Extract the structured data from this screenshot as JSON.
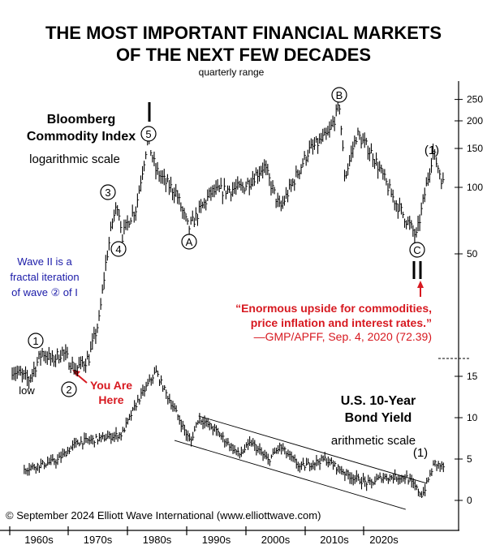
{
  "chart_data": {
    "type": "bar",
    "bar_style": "quarterly range (high-low) bars",
    "title": [
      "THE MOST IMPORTANT FINANCIAL MARKETS",
      "OF THE NEXT FEW DECADES"
    ],
    "subtitle": "quarterly range",
    "x_ticks": [
      "1960s",
      "1970s",
      "1980s",
      "1990s",
      "2000s",
      "2010s",
      "2020s"
    ],
    "panels": [
      {
        "name": [
          "Bloomberg",
          "Commodity Index"
        ],
        "scale_label": "logarithmic scale",
        "y_scale": "log",
        "y_ticks": [
          50,
          100,
          150,
          200,
          250
        ],
        "anchors": [
          [
            1960,
            15
          ],
          [
            1961.5,
            14
          ],
          [
            1962.5,
            13.5
          ],
          [
            1964.5,
            18
          ],
          [
            1966,
            16.5
          ],
          [
            1967.5,
            18
          ],
          [
            1969.5,
            15
          ],
          [
            1971.5,
            17
          ],
          [
            1973,
            25
          ],
          [
            1974,
            45
          ],
          [
            1975,
            70
          ],
          [
            1975.8,
            85
          ],
          [
            1976.5,
            60
          ],
          [
            1977.5,
            72
          ],
          [
            1978.5,
            80
          ],
          [
            1979.5,
            120
          ],
          [
            1980.3,
            165
          ],
          [
            1981.5,
            120
          ],
          [
            1983,
            105
          ],
          [
            1984.5,
            95
          ],
          [
            1986.4,
            65
          ],
          [
            1989.8,
            95
          ],
          [
            1994.6,
            100
          ],
          [
            1997.7,
            125
          ],
          [
            2000.1,
            80
          ],
          [
            2004.3,
            145
          ],
          [
            2007.4,
            175
          ],
          [
            2009,
            235
          ],
          [
            2009.8,
            110
          ],
          [
            2011.6,
            175
          ],
          [
            2014,
            140
          ],
          [
            2017,
            90
          ],
          [
            2020.5,
            60
          ],
          [
            2023,
            145
          ],
          [
            2024.7,
            100
          ]
        ]
      },
      {
        "name": [
          "U.S. 10-Year",
          "Bond Yield"
        ],
        "scale_label": "arithmetic scale",
        "y_scale": "linear",
        "y_ticks": [
          0,
          5,
          10,
          15
        ],
        "anchors": [
          [
            1961.8,
            3.8
          ],
          [
            1966.7,
            4.8
          ],
          [
            1969.7,
            7
          ],
          [
            1973.4,
            7.5
          ],
          [
            1976.4,
            8
          ],
          [
            1978.8,
            12
          ],
          [
            1981.5,
            15.6
          ],
          [
            1983,
            13
          ],
          [
            1984.3,
            11
          ],
          [
            1986.7,
            7
          ],
          [
            1987.9,
            10
          ],
          [
            1990.4,
            8.5
          ],
          [
            1994,
            5.5
          ],
          [
            1995.8,
            7
          ],
          [
            1998.3,
            4.8
          ],
          [
            2000.1,
            6.5
          ],
          [
            2003.1,
            4
          ],
          [
            2006.8,
            5
          ],
          [
            2010.4,
            3
          ],
          [
            2013.5,
            2
          ],
          [
            2015.3,
            2.8
          ],
          [
            2019,
            2.8
          ],
          [
            2021.4,
            0.6
          ],
          [
            2023.2,
            4.5
          ],
          [
            2024.7,
            4
          ]
        ],
        "channel": {
          "upper": [
            [
              1987.9,
              10.2
            ],
            [
              2022.1,
              2.05
            ]
          ],
          "lower": [
            [
              1984.3,
              7.25
            ],
            [
              2018.9,
              -1.08
            ]
          ]
        }
      }
    ],
    "wave_labels": {
      "commodity": [
        "1",
        "2",
        "3",
        "4",
        "5",
        "A",
        "B",
        "C",
        "(1)"
      ],
      "bond": [
        "(1)"
      ],
      "low": "low"
    },
    "annotations": {
      "wave_note": [
        "Wave II is a",
        "fractal iteration",
        "of wave ② of I"
      ],
      "quote": [
        "“Enormous upside for commodities,",
        "price inflation and interest rates.”",
        "—GMP/APFF, Sep. 4, 2020 (72.39)"
      ],
      "you_are_here": [
        "You Are",
        "Here"
      ]
    },
    "copyright": "© September 2024 Elliott Wave International (www.elliottwave.com)",
    "colors": {
      "bars": "#000000",
      "annotation_red": "#d71920",
      "note_blue": "#1a1aa8"
    }
  }
}
